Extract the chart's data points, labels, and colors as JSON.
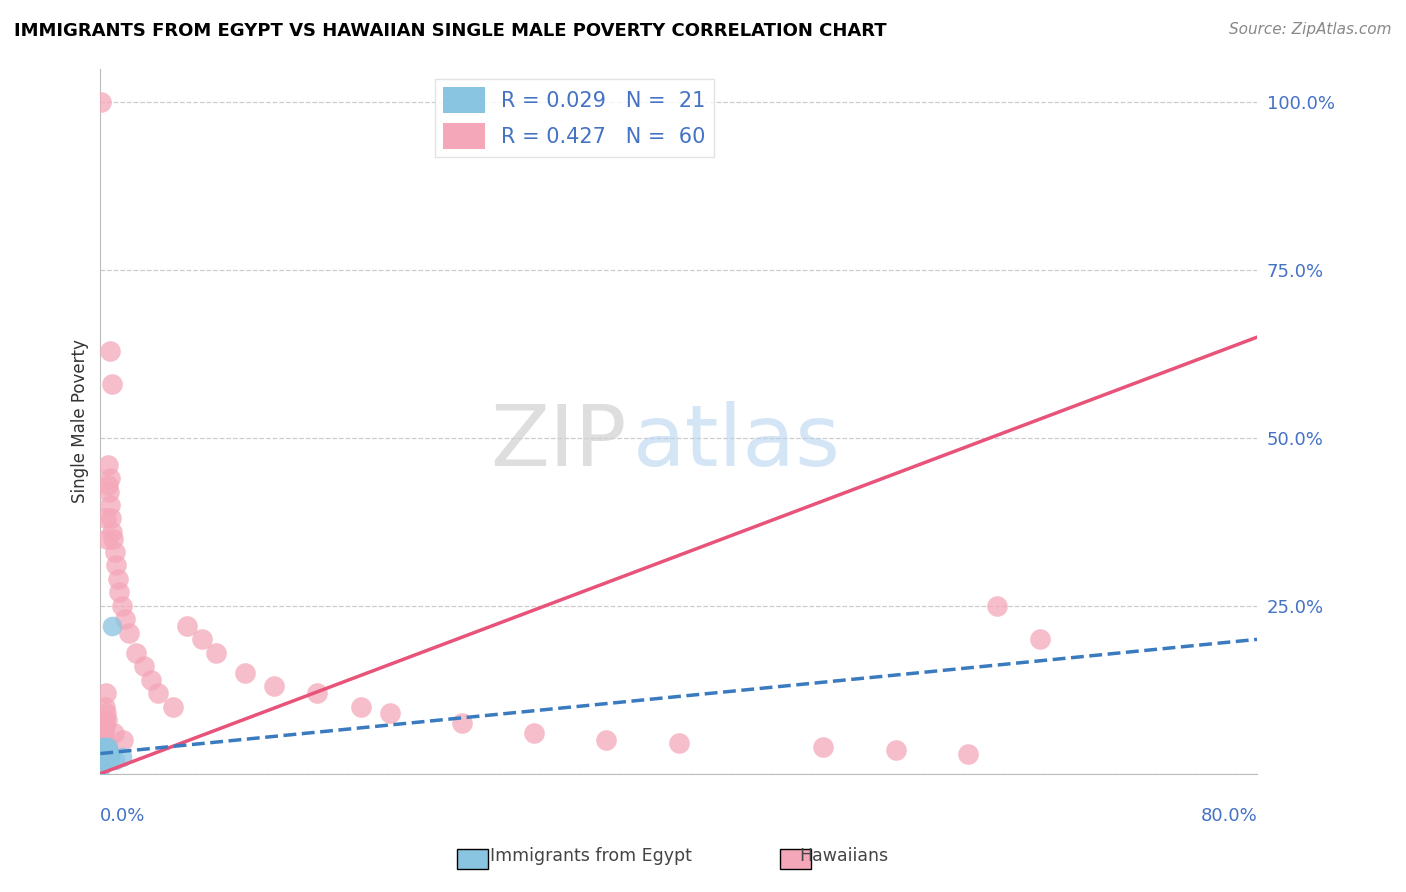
{
  "title": "IMMIGRANTS FROM EGYPT VS HAWAIIAN SINGLE MALE POVERTY CORRELATION CHART",
  "source": "Source: ZipAtlas.com",
  "ylabel": "Single Male Poverty",
  "blue_color": "#89c4e1",
  "pink_color": "#f4a7b9",
  "blue_line_color": "#3a7abf",
  "pink_line_color": "#e8537a",
  "watermark_zip": "ZIP",
  "watermark_atlas": "atlas",
  "blue_points_x": [
    0.05,
    0.08,
    0.1,
    0.12,
    0.15,
    0.18,
    0.2,
    0.22,
    0.25,
    0.28,
    0.3,
    0.35,
    0.4,
    0.45,
    0.5,
    0.55,
    0.6,
    0.7,
    0.8,
    1.0,
    1.5
  ],
  "blue_points_y": [
    1.0,
    2.0,
    1.5,
    3.0,
    2.5,
    4.0,
    3.5,
    2.0,
    3.0,
    2.5,
    4.0,
    3.5,
    3.0,
    2.5,
    4.0,
    3.5,
    2.0,
    3.0,
    22.0,
    2.0,
    2.5
  ],
  "pink_points_x": [
    0.05,
    0.08,
    0.1,
    0.12,
    0.15,
    0.18,
    0.2,
    0.22,
    0.25,
    0.28,
    0.3,
    0.35,
    0.4,
    0.45,
    0.5,
    0.55,
    0.6,
    0.65,
    0.7,
    0.75,
    0.8,
    0.9,
    1.0,
    1.1,
    1.2,
    1.3,
    1.5,
    1.7,
    2.0,
    2.5,
    3.0,
    3.5,
    4.0,
    5.0,
    6.0,
    7.0,
    8.0,
    10.0,
    12.0,
    15.0,
    18.0,
    20.0,
    25.0,
    30.0,
    35.0,
    40.0,
    50.0,
    55.0,
    60.0,
    62.0,
    65.0,
    0.42,
    0.48,
    0.32,
    0.38,
    0.68,
    0.78,
    0.95,
    1.6,
    0.05
  ],
  "pink_points_y": [
    2.0,
    3.0,
    4.0,
    5.0,
    3.5,
    4.5,
    6.0,
    5.0,
    7.0,
    6.0,
    8.0,
    7.0,
    9.0,
    8.0,
    43.0,
    46.0,
    42.0,
    44.0,
    40.0,
    38.0,
    36.0,
    35.0,
    33.0,
    31.0,
    29.0,
    27.0,
    25.0,
    23.0,
    21.0,
    18.0,
    16.0,
    14.0,
    12.0,
    10.0,
    22.0,
    20.0,
    18.0,
    15.0,
    13.0,
    12.0,
    10.0,
    9.0,
    7.5,
    6.0,
    5.0,
    4.5,
    4.0,
    3.5,
    3.0,
    25.0,
    20.0,
    38.0,
    35.0,
    10.0,
    12.0,
    63.0,
    58.0,
    6.0,
    5.0,
    100.0
  ],
  "pink_line_x0": 0,
  "pink_line_y0": 0,
  "pink_line_x1": 80,
  "pink_line_y1": 65,
  "blue_line_x0": 0,
  "blue_line_y0": 3,
  "blue_line_x1": 80,
  "blue_line_y1": 20,
  "xlim": [
    0,
    80
  ],
  "ylim": [
    0,
    105
  ],
  "ytick_positions": [
    0,
    25,
    50,
    75,
    100
  ],
  "ytick_labels": [
    "",
    "25.0%",
    "50.0%",
    "75.0%",
    "100.0%"
  ],
  "title_fontsize": 13,
  "source_fontsize": 11,
  "legend_r_blue": "R = 0.029",
  "legend_n_blue": "N =  21",
  "legend_r_pink": "R = 0.427",
  "legend_n_pink": "N =  60"
}
